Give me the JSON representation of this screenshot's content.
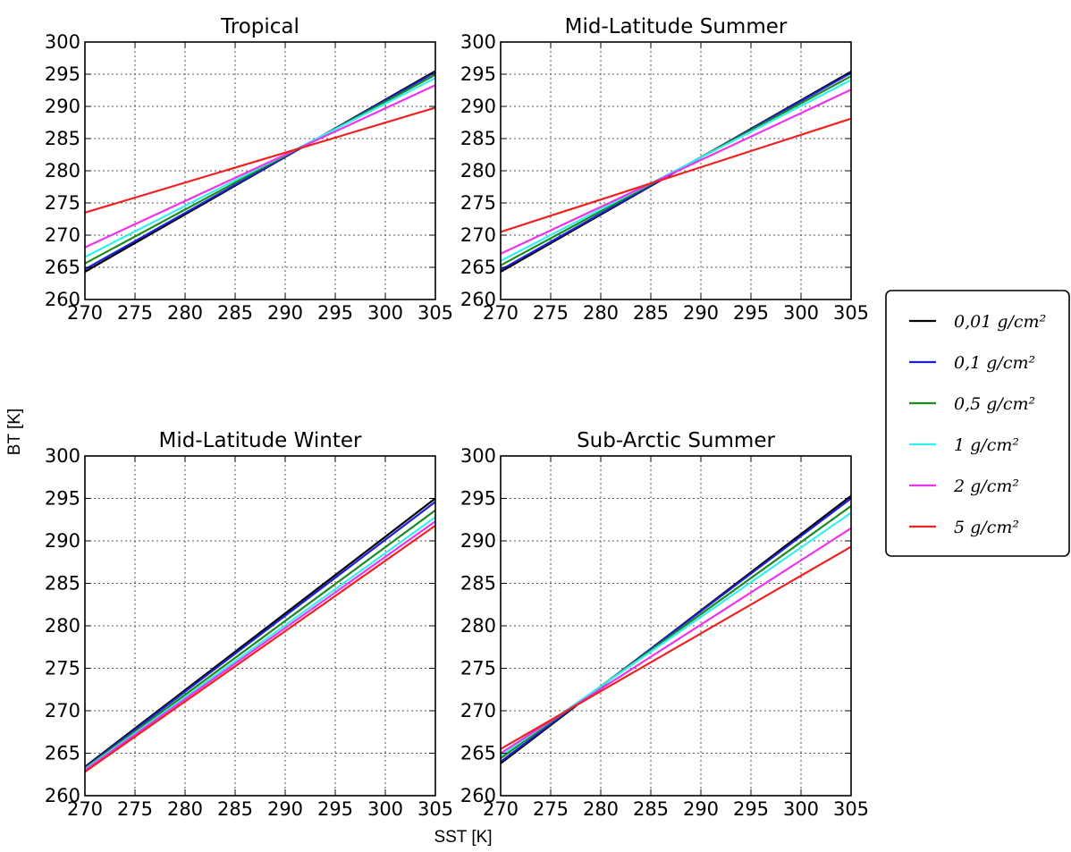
{
  "figure": {
    "xlabel": "SST [K]",
    "ylabel": "BT [K]"
  },
  "legend": {
    "placement": "right",
    "entries": [
      {
        "label": "0,01 g/cm²",
        "color": "#000000"
      },
      {
        "label": "0,1 g/cm²",
        "color": "#1f1fd8"
      },
      {
        "label": "0,5 g/cm²",
        "color": "#1e8a1e"
      },
      {
        "label": "1 g/cm²",
        "color": "#33f0f0"
      },
      {
        "label": "2 g/cm²",
        "color": "#ee33ee"
      },
      {
        "label": "5 g/cm²",
        "color": "#ee2222"
      }
    ]
  },
  "chart_data": [
    {
      "type": "line",
      "title": "Tropical",
      "xlim": [
        270,
        305
      ],
      "ylim": [
        260,
        300
      ],
      "xticks": [
        270,
        275,
        280,
        285,
        290,
        295,
        300,
        305
      ],
      "yticks": [
        260,
        265,
        270,
        275,
        280,
        285,
        290,
        295,
        300
      ],
      "grid": true,
      "series": [
        {
          "name": "0,01 g/cm²",
          "x": [
            270,
            305
          ],
          "y": [
            264.3,
            295.5
          ]
        },
        {
          "name": "0,1 g/cm²",
          "x": [
            270,
            305
          ],
          "y": [
            264.7,
            295.3
          ]
        },
        {
          "name": "0,5 g/cm²",
          "x": [
            270,
            305
          ],
          "y": [
            265.6,
            294.9
          ]
        },
        {
          "name": "1 g/cm²",
          "x": [
            270,
            305
          ],
          "y": [
            266.6,
            294.4
          ]
        },
        {
          "name": "2 g/cm²",
          "x": [
            270,
            305
          ],
          "y": [
            268.1,
            293.3
          ]
        },
        {
          "name": "5 g/cm²",
          "x": [
            270,
            305
          ],
          "y": [
            273.5,
            289.8
          ]
        }
      ]
    },
    {
      "type": "line",
      "title": "Mid-Latitude Summer",
      "xlim": [
        270,
        305
      ],
      "ylim": [
        260,
        300
      ],
      "xticks": [
        270,
        275,
        280,
        285,
        290,
        295,
        300,
        305
      ],
      "yticks": [
        260,
        265,
        270,
        275,
        280,
        285,
        290,
        295,
        300
      ],
      "grid": true,
      "series": [
        {
          "name": "0,01 g/cm²",
          "x": [
            270,
            305
          ],
          "y": [
            264.3,
            295.4
          ]
        },
        {
          "name": "0,1 g/cm²",
          "x": [
            270,
            305
          ],
          "y": [
            264.6,
            295.2
          ]
        },
        {
          "name": "0,5 g/cm²",
          "x": [
            270,
            305
          ],
          "y": [
            265.3,
            294.7
          ]
        },
        {
          "name": "1 g/cm²",
          "x": [
            270,
            305
          ],
          "y": [
            266.0,
            294.1
          ]
        },
        {
          "name": "2 g/cm²",
          "x": [
            270,
            305
          ],
          "y": [
            267.1,
            292.6
          ]
        },
        {
          "name": "5 g/cm²",
          "x": [
            270,
            305
          ],
          "y": [
            270.5,
            288.1
          ]
        }
      ]
    },
    {
      "type": "line",
      "title": "Mid-Latitude Winter",
      "xlim": [
        270,
        305
      ],
      "ylim": [
        260,
        300
      ],
      "xticks": [
        270,
        275,
        280,
        285,
        290,
        295,
        300,
        305
      ],
      "yticks": [
        260,
        265,
        270,
        275,
        280,
        285,
        290,
        295,
        300
      ],
      "grid": true,
      "series": [
        {
          "name": "0,01 g/cm²",
          "x": [
            270,
            305
          ],
          "y": [
            263.4,
            295.0
          ]
        },
        {
          "name": "0,1 g/cm²",
          "x": [
            270,
            305
          ],
          "y": [
            263.3,
            294.6
          ]
        },
        {
          "name": "0,5 g/cm²",
          "x": [
            270,
            305
          ],
          "y": [
            263.2,
            293.6
          ]
        },
        {
          "name": "1 g/cm²",
          "x": [
            270,
            305
          ],
          "y": [
            263.1,
            292.8
          ]
        },
        {
          "name": "2 g/cm²",
          "x": [
            270,
            305
          ],
          "y": [
            263.0,
            292.3
          ]
        },
        {
          "name": "5 g/cm²",
          "x": [
            270,
            305
          ],
          "y": [
            262.8,
            291.8
          ]
        }
      ]
    },
    {
      "type": "line",
      "title": "Sub-Arctic Summer",
      "xlim": [
        270,
        305
      ],
      "ylim": [
        260,
        300
      ],
      "xticks": [
        270,
        275,
        280,
        285,
        290,
        295,
        300,
        305
      ],
      "yticks": [
        260,
        265,
        270,
        275,
        280,
        285,
        290,
        295,
        300
      ],
      "grid": true,
      "series": [
        {
          "name": "0,01 g/cm²",
          "x": [
            270,
            305
          ],
          "y": [
            263.8,
            295.3
          ]
        },
        {
          "name": "0,1 g/cm²",
          "x": [
            270,
            305
          ],
          "y": [
            264.0,
            295.0
          ]
        },
        {
          "name": "0,5 g/cm²",
          "x": [
            270,
            305
          ],
          "y": [
            264.4,
            294.1
          ]
        },
        {
          "name": "1 g/cm²",
          "x": [
            270,
            305
          ],
          "y": [
            264.7,
            293.3
          ]
        },
        {
          "name": "2 g/cm²",
          "x": [
            270,
            305
          ],
          "y": [
            265.0,
            291.5
          ]
        },
        {
          "name": "5 g/cm²",
          "x": [
            270,
            305
          ],
          "y": [
            265.5,
            289.3
          ]
        }
      ]
    }
  ]
}
